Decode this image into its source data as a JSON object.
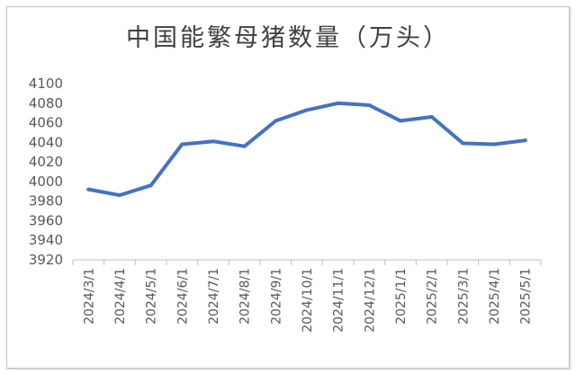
{
  "chart_data": {
    "type": "line",
    "title": "中国能繁母猪数量（万头）",
    "xlabel": "",
    "ylabel": "",
    "categories": [
      "2024/3/1",
      "2024/4/1",
      "2024/5/1",
      "2024/6/1",
      "2024/7/1",
      "2024/8/1",
      "2024/9/1",
      "2024/10/1",
      "2024/11/1",
      "2024/12/1",
      "2025/1/1",
      "2025/2/1",
      "2025/3/1",
      "2025/4/1",
      "2025/5/1"
    ],
    "series": [
      {
        "values": [
          3992,
          3986,
          3996,
          4038,
          4041,
          4036,
          4062,
          4073,
          4080,
          4078,
          4062,
          4066,
          4039,
          4038,
          4042
        ]
      }
    ],
    "ylim": [
      3920,
      4100
    ],
    "yticks": [
      3920,
      3940,
      3960,
      3980,
      4000,
      4020,
      4040,
      4060,
      4080,
      4100
    ],
    "grid": false,
    "legend": "none",
    "line_color": "#4472c4",
    "axis_color": "#bfbfbf"
  }
}
